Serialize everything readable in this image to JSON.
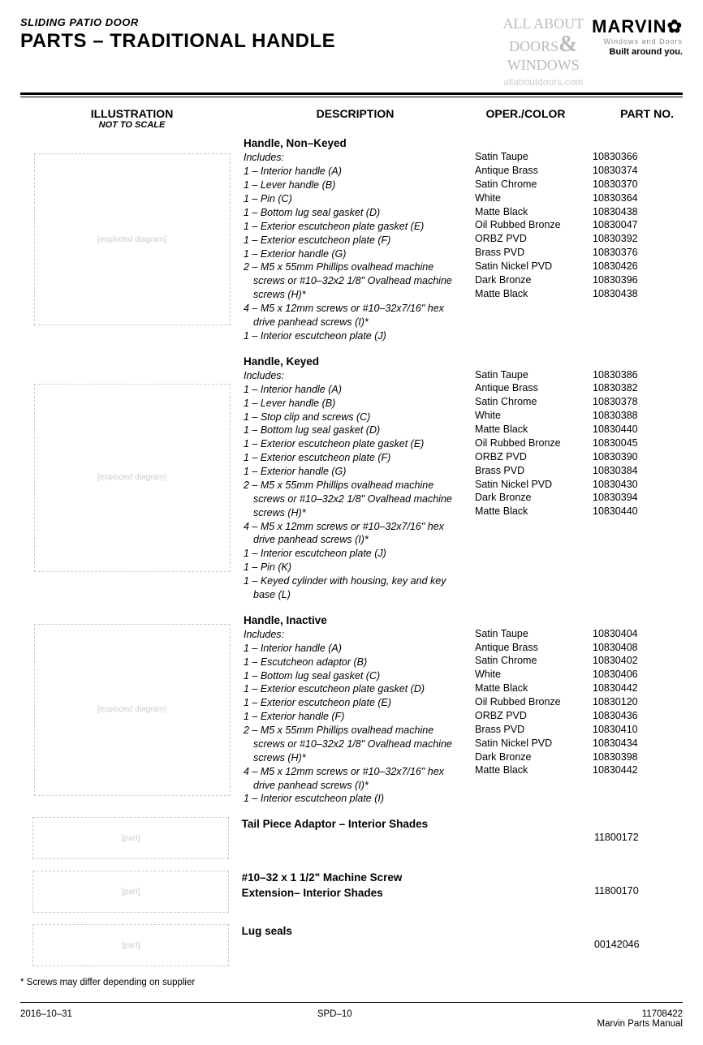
{
  "header": {
    "pre_title": "SLIDING PATIO DOOR",
    "title": "PARTS – TRADITIONAL HANDLE",
    "watermark_l1": "ALL ABOUT",
    "watermark_l2": "DOORS",
    "watermark_amp": "&",
    "watermark_l3": "WINDOWS",
    "watermark_url": "allaboutdoors.com",
    "brand": "MARVIN",
    "brand_sub": "Windows and Doors",
    "brand_tag": "Built around you."
  },
  "columns": {
    "illustration": "ILLUSTRATION",
    "illustration_sub": "NOT TO SCALE",
    "description": "DESCRIPTION",
    "oper": "OPER./COLOR",
    "part": "PART NO."
  },
  "sections": [
    {
      "title": "Handle, Non–Keyed",
      "ill_height": 210,
      "includes_label": "Includes:",
      "includes": [
        "1 – Interior handle (A)",
        "1 – Lever handle (B)",
        "1 – Pin (C)",
        "1 – Bottom lug seal gasket (D)",
        "1 – Exterior escutcheon plate gasket (E)",
        "1 – Exterior escutcheon plate (F)",
        "1 – Exterior handle (G)",
        "2 – M5 x 55mm Phillips ovalhead machine screws or #10–32x2 1/8\" Ovalhead machine screws (H)*",
        "4 – M5 x 12mm screws or #10–32x7/16\" hex drive panhead screws (I)*",
        "1 – Interior escutcheon plate (J)"
      ],
      "variants": [
        {
          "oper": "Satin Taupe",
          "part": "10830366"
        },
        {
          "oper": "Antique Brass",
          "part": "10830374"
        },
        {
          "oper": "Satin Chrome",
          "part": "10830370"
        },
        {
          "oper": "White",
          "part": "10830364"
        },
        {
          "oper": "Matte Black",
          "part": "10830438"
        },
        {
          "oper": "Oil Rubbed Bronze",
          "part": "10830047"
        },
        {
          "oper": "ORBZ PVD",
          "part": "10830392"
        },
        {
          "oper": "Brass PVD",
          "part": "10830376"
        },
        {
          "oper": "Satin Nickel PVD",
          "part": "10830426"
        },
        {
          "oper": "Dark Bronze",
          "part": "10830396"
        },
        {
          "oper": "Matte Black",
          "part": "10830438"
        }
      ]
    },
    {
      "title": "Handle, Keyed",
      "ill_height": 230,
      "includes_label": "Includes:",
      "includes": [
        "1 – Interior handle (A)",
        "1 – Lever handle (B)",
        "1 – Stop clip and screws (C)",
        "1 – Bottom lug seal gasket (D)",
        "1 – Exterior escutcheon plate gasket (E)",
        "1 – Exterior escutcheon plate (F)",
        "1 – Exterior handle (G)",
        "2 – M5 x 55mm Phillips ovalhead machine screws or #10–32x2 1/8\" Ovalhead machine screws (H)*",
        "4 – M5 x 12mm screws or #10–32x7/16\" hex drive panhead screws (I)*",
        "1 – Interior escutcheon plate (J)",
        "1 – Pin (K)",
        "1 – Keyed cylinder with housing, key and key base (L)"
      ],
      "variants": [
        {
          "oper": "Satin Taupe",
          "part": "10830386"
        },
        {
          "oper": "Antique Brass",
          "part": "10830382"
        },
        {
          "oper": "Satin Chrome",
          "part": "10830378"
        },
        {
          "oper": "White",
          "part": "10830388"
        },
        {
          "oper": "Matte Black",
          "part": "10830440"
        },
        {
          "oper": "Oil Rubbed Bronze",
          "part": "10830045"
        },
        {
          "oper": "ORBZ PVD",
          "part": "10830390"
        },
        {
          "oper": "Brass PVD",
          "part": "10830384"
        },
        {
          "oper": "Satin Nickel PVD",
          "part": "10830430"
        },
        {
          "oper": "Dark Bronze",
          "part": "10830394"
        },
        {
          "oper": "Matte Black",
          "part": "10830440"
        }
      ]
    },
    {
      "title": "Handle, Inactive",
      "ill_height": 210,
      "includes_label": "Includes:",
      "includes": [
        "1 – Interior handle (A)",
        "1 – Escutcheon adaptor (B)",
        "1 – Bottom lug seal gasket (C)",
        "1 – Exterior escutcheon plate gasket (D)",
        "1 – Exterior escutcheon plate (E)",
        "1 – Exterior handle (F)",
        "2 – M5 x 55mm Phillips ovalhead machine screws or #10–32x2 1/8\" Ovalhead machine screws (H)*",
        "4 – M5 x 12mm screws or #10–32x7/16\" hex drive panhead screws (I)*",
        "1 – Interior escutcheon plate (I)"
      ],
      "variants": [
        {
          "oper": "Satin Taupe",
          "part": "10830404"
        },
        {
          "oper": "Antique Brass",
          "part": "10830408"
        },
        {
          "oper": "Satin Chrome",
          "part": "10830402"
        },
        {
          "oper": "White",
          "part": "10830406"
        },
        {
          "oper": "Matte Black",
          "part": "10830442"
        },
        {
          "oper": "Oil Rubbed Bronze",
          "part": "10830120"
        },
        {
          "oper": "ORBZ PVD",
          "part": "10830436"
        },
        {
          "oper": "Brass PVD",
          "part": "10830410"
        },
        {
          "oper": "Satin Nickel PVD",
          "part": "10830434"
        },
        {
          "oper": "Dark Bronze",
          "part": "10830398"
        },
        {
          "oper": "Matte Black",
          "part": "10830442"
        }
      ]
    }
  ],
  "simple_items": [
    {
      "title": "Tail Piece Adaptor – Interior Shades",
      "part": "11800172",
      "ill_height": 50
    },
    {
      "title": "#10–32 x 1 1/2\" Machine Screw Extension– Interior Shades",
      "part": "11800170",
      "ill_height": 50
    },
    {
      "title": "Lug seals",
      "part": "00142046",
      "ill_height": 50
    }
  ],
  "footnote": "*    Screws may differ depending on supplier",
  "footer": {
    "date": "2016–10–31",
    "page": "SPD–10",
    "docnum": "11708422",
    "docname": "Marvin Parts Manual"
  }
}
